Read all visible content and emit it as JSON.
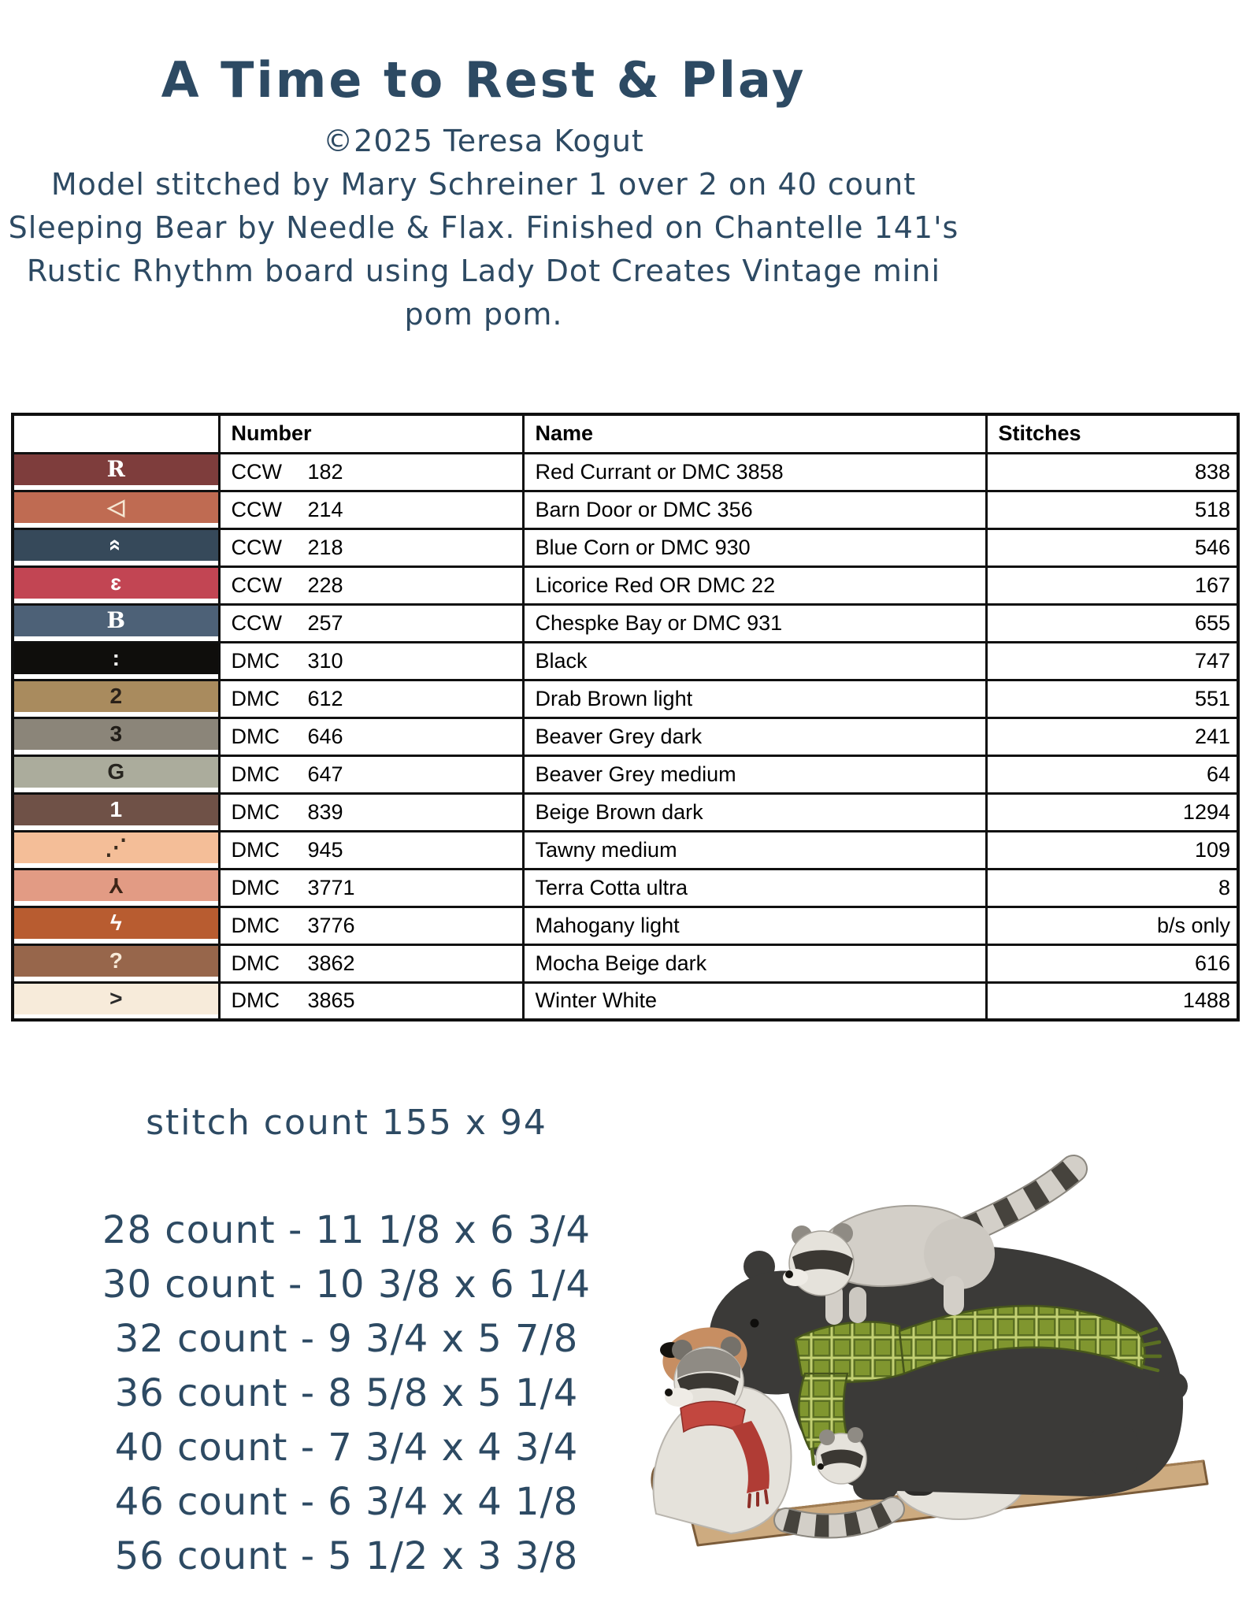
{
  "page": {
    "background": "#ffffff",
    "ink_color": "#2d4a63"
  },
  "header": {
    "title": "A Time to Rest & Play",
    "copyright": "©2025 Teresa Kogut",
    "lines": [
      "Model stitched by Mary Schreiner 1 over 2 on 40 count",
      "Sleeping Bear by Needle & Flax. Finished on Chantelle 141's",
      "Rustic Rhythm board using Lady Dot Creates Vintage mini pom pom."
    ]
  },
  "table": {
    "headers": {
      "symbol": "",
      "number": "Number",
      "name": "Name",
      "stitches": "Stitches"
    },
    "rows": [
      {
        "sym": "R",
        "sym_color": "#ffffff",
        "serif": true,
        "rot": 0,
        "bg": "#7e3d3c",
        "brand": "CCW",
        "code": "182",
        "name": "Red Currant or DMC 3858",
        "stitches": "838"
      },
      {
        "sym": "◁",
        "sym_color": "#f5e6d2",
        "serif": false,
        "rot": 0,
        "bg": "#bf6b52",
        "brand": "CCW",
        "code": "214",
        "name": "Barn Door or DMC 356",
        "stitches": "518"
      },
      {
        "sym": "«",
        "sym_color": "#ffffff",
        "serif": false,
        "rot": 90,
        "bg": "#36495a",
        "brand": "CCW",
        "code": "218",
        "name": "Blue Corn or DMC 930",
        "stitches": "546"
      },
      {
        "sym": "ɛ",
        "sym_color": "#ffffff",
        "serif": false,
        "rot": 0,
        "bg": "#c24553",
        "brand": "CCW",
        "code": "228",
        "name": "Licorice Red OR DMC 22",
        "stitches": "167"
      },
      {
        "sym": "B",
        "sym_color": "#ffffff",
        "serif": true,
        "rot": 0,
        "bg": "#4d6177",
        "brand": "CCW",
        "code": "257",
        "name": "Chespke Bay or DMC 931",
        "stitches": "655"
      },
      {
        "sym": ":",
        "sym_color": "#ffffff",
        "serif": false,
        "rot": 0,
        "bg": "#0f0e0c",
        "brand": "DMC",
        "code": "310",
        "name": "Black",
        "stitches": "747"
      },
      {
        "sym": "2",
        "sym_color": "#2a2119",
        "serif": false,
        "rot": 0,
        "bg": "#a98b5e",
        "brand": "DMC",
        "code": "612",
        "name": "Drab Brown  light",
        "stitches": "551"
      },
      {
        "sym": "3",
        "sym_color": "#211d18",
        "serif": false,
        "rot": 0,
        "bg": "#8b8579",
        "brand": "DMC",
        "code": "646",
        "name": "Beaver Grey dark",
        "stitches": "241"
      },
      {
        "sym": "G",
        "sym_color": "#27251f",
        "serif": false,
        "rot": 0,
        "bg": "#abac9c",
        "brand": "DMC",
        "code": "647",
        "name": "Beaver Grey medium",
        "stitches": "64"
      },
      {
        "sym": "1",
        "sym_color": "#ffffff",
        "serif": false,
        "rot": 0,
        "bg": "#6f5147",
        "brand": "DMC",
        "code": "839",
        "name": "Beige Brown dark",
        "stitches": "1294"
      },
      {
        "sym": "⋰",
        "sym_color": "#3a2b1d",
        "serif": false,
        "rot": 0,
        "bg": "#f4be98",
        "brand": "DMC",
        "code": "945",
        "name": "Tawny medium",
        "stitches": "109"
      },
      {
        "sym": "Y",
        "sym_color": "#3c2417",
        "serif": false,
        "rot": 180,
        "bg": "#e29b84",
        "brand": "DMC",
        "code": "3771",
        "name": "Terra Cotta ultra",
        "stitches": "8"
      },
      {
        "sym": "ϟ",
        "sym_color": "#ffffff",
        "serif": false,
        "rot": 0,
        "bg": "#b85c30",
        "brand": "DMC",
        "code": "3776",
        "name": "Mahogany light",
        "stitches": "b/s only"
      },
      {
        "sym": "?",
        "sym_color": "#f7ead8",
        "serif": false,
        "rot": 0,
        "bg": "#97664b",
        "brand": "DMC",
        "code": "3862",
        "name": "Mocha Beige dark",
        "stitches": "616"
      },
      {
        "sym": ">",
        "sym_color": "#2b2b2b",
        "serif": false,
        "rot": 0,
        "bg": "#f7ebda",
        "brand": "DMC",
        "code": "3865",
        "name": "Winter White",
        "stitches": "1488"
      }
    ]
  },
  "footer": {
    "stitch_count": "stitch count 155 x 94",
    "sizes": [
      "28 count - 11 1/8 x 6 3/4",
      "30 count - 10 3/8 x 6 1/4",
      "32 count - 9 3/4 x 5 7/8",
      "36 count - 8 5/8 x 5 1/4",
      "40 count - 7 3/4 x 4 3/4",
      "46 count - 6 3/4 x 4 1/8",
      "56 count - 5 1/2 x 3 3/8"
    ]
  },
  "illustration": {
    "description": "watercolor black bear wearing a green plaid scarf with raccoons riding its back and a red-scarfed raccoon seated on a wooden sled",
    "colors": {
      "ink": "#2d4a63",
      "bear": "#3b3a38",
      "bear-dark": "#2c2b29",
      "muzzle": "#c78e62",
      "nose": "#15130f",
      "scarf": "#80962f",
      "scarf-dark": "#5a6e22",
      "scarf-light": "#c3d073",
      "scarf-line": "#46551c",
      "raccoon": "#e5e2db",
      "raccoon-mid": "#d3cfc8",
      "raccoon-shade": "#8f8b84",
      "raccoon-line": "#b9b5ae",
      "mask": "#3b3833",
      "stripe": "#46433d",
      "red-scarf": "#c2473f",
      "red-scarf-dark": "#b03c35",
      "red-fringe": "#8d2e28",
      "sled": "#cdab80",
      "sled-edge": "#7b5c3a"
    }
  }
}
